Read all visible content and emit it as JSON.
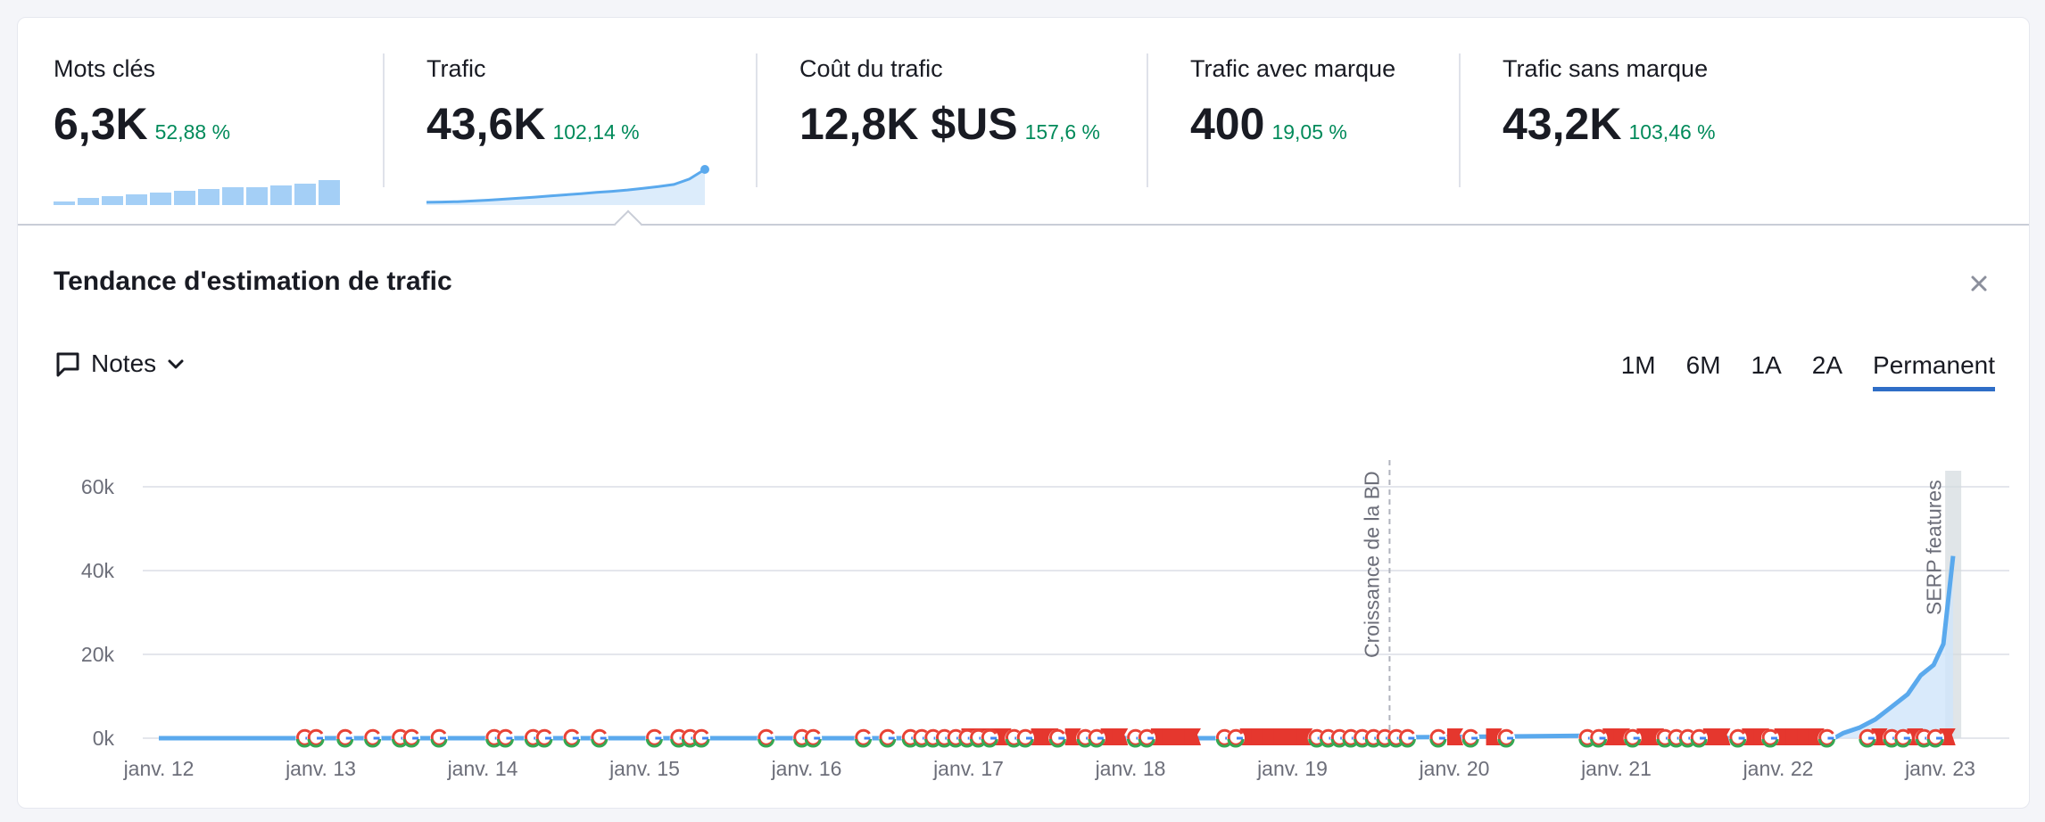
{
  "metrics": [
    {
      "label": "Mots clés",
      "value": "6,3K",
      "change": "52,88 %",
      "spark": "bars",
      "spark_values": [
        2,
        4,
        5,
        6,
        7,
        8,
        9,
        10,
        10,
        11,
        12,
        14,
        20
      ]
    },
    {
      "label": "Trafic",
      "value": "43,6K",
      "change": "102,14 %",
      "spark": "line",
      "spark_values": [
        2,
        2.2,
        2.5,
        3,
        3.6,
        4.3,
        5,
        5.8,
        6.6,
        7.5,
        8.3,
        9.2,
        10,
        11,
        12.2,
        13.5,
        15,
        19,
        26
      ]
    },
    {
      "label": "Coût du trafic",
      "value": "12,8K $US",
      "change": "157,6 %"
    },
    {
      "label": "Trafic avec marque",
      "value": "400",
      "change": "19,05 %"
    },
    {
      "label": "Trafic sans marque",
      "value": "43,2K",
      "change": "103,46 %"
    }
  ],
  "panel": {
    "title": "Tendance d'estimation de trafic",
    "notes_label": "Notes",
    "periods": [
      "1M",
      "6M",
      "1A",
      "2A",
      "Permanent"
    ],
    "active_period": "Permanent"
  },
  "chart_data": {
    "type": "area",
    "title": "Tendance d'estimation de trafic",
    "xlabel": "",
    "ylabel": "",
    "x_tick_labels": [
      "janv. 12",
      "janv. 13",
      "janv. 14",
      "janv. 15",
      "janv. 16",
      "janv. 17",
      "janv. 18",
      "janv. 19",
      "janv. 20",
      "janv. 21",
      "janv. 22",
      "janv. 23"
    ],
    "y_tick_labels": [
      "0k",
      "20k",
      "40k",
      "60k"
    ],
    "ylim": [
      0,
      60000
    ],
    "grid": true,
    "color": "#5aa9ed",
    "series": [
      {
        "values": [
          [
            2012.0,
            0
          ],
          [
            2013.0,
            0
          ],
          [
            2014.0,
            0
          ],
          [
            2015.0,
            0
          ],
          [
            2016.0,
            0
          ],
          [
            2017.0,
            0
          ],
          [
            2018.0,
            0
          ],
          [
            2019.0,
            0
          ],
          [
            2019.35,
            0
          ],
          [
            2019.4,
            150
          ],
          [
            2020.0,
            300
          ],
          [
            2020.8,
            600
          ],
          [
            2020.85,
            0
          ],
          [
            2021.0,
            0
          ],
          [
            2022.0,
            0
          ],
          [
            2022.35,
            100
          ],
          [
            2022.4,
            1200
          ],
          [
            2022.5,
            2500
          ],
          [
            2022.6,
            4500
          ],
          [
            2022.7,
            7500
          ],
          [
            2022.8,
            10500
          ],
          [
            2022.88,
            15000
          ],
          [
            2022.96,
            17500
          ],
          [
            2023.02,
            22500
          ],
          [
            2023.08,
            43500
          ]
        ]
      }
    ],
    "annotations": [
      {
        "label": "Croissance de la BD",
        "x": 2019.6
      },
      {
        "label": "SERP features",
        "x": 2023.05
      }
    ],
    "event_markers": {
      "google_update_x": [
        2012.9,
        2012.97,
        2013.15,
        2013.32,
        2013.49,
        2013.56,
        2013.73,
        2014.07,
        2014.14,
        2014.31,
        2014.38,
        2014.55,
        2014.72,
        2015.06,
        2015.21,
        2015.28,
        2015.35,
        2015.75,
        2015.97,
        2016.04,
        2016.35,
        2016.5,
        2016.64,
        2016.71,
        2016.78,
        2016.85,
        2016.92,
        2016.99,
        2017.06,
        2017.13,
        2017.28,
        2017.35,
        2017.55,
        2017.72,
        2017.79,
        2018.03,
        2018.1,
        2018.58,
        2018.65,
        2019.15,
        2019.22,
        2019.29,
        2019.36,
        2019.43,
        2019.5,
        2019.57,
        2019.64,
        2019.71,
        2019.9,
        2020.1,
        2020.32,
        2020.82,
        2020.89,
        2021.1,
        2021.3,
        2021.37,
        2021.44,
        2021.51,
        2021.75,
        2021.95,
        2022.3,
        2022.55,
        2022.7,
        2022.77,
        2022.9,
        2022.97
      ],
      "serp_flag_x": [
        2017.0,
        2017.07,
        2017.14,
        2017.21,
        2017.43,
        2017.5,
        2017.64,
        2017.86,
        2017.93,
        2018.17,
        2018.24,
        2018.31,
        2018.38,
        2018.72,
        2018.79,
        2018.86,
        2018.93,
        2019.0,
        2019.07,
        2020.0,
        2020.24,
        2020.96,
        2021.03,
        2021.17,
        2021.24,
        2021.58,
        2021.65,
        2021.82,
        2021.89,
        2022.02,
        2022.09,
        2022.16,
        2022.23,
        2022.62,
        2022.84,
        2023.04
      ]
    }
  }
}
